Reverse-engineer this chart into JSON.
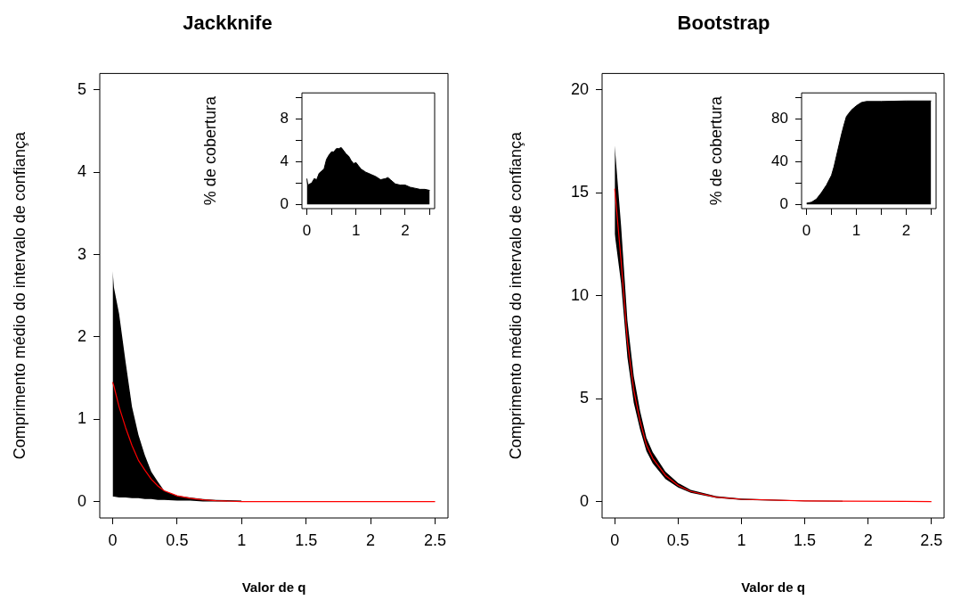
{
  "chart_data": [
    {
      "type": "line",
      "title": "Jackknife",
      "xlabel": "Valor de q",
      "ylabel": "Comprimento médio do intervalo de confiança",
      "xlim": [
        -0.1,
        2.6
      ],
      "ylim": [
        -0.2,
        5.2
      ],
      "xticks": [
        0,
        0.5,
        1,
        1.5,
        2,
        2.5
      ],
      "yticks": [
        0,
        1,
        2,
        3,
        4,
        5
      ],
      "series": [
        {
          "color": "#ff0000",
          "x": [
            0,
            0.01,
            0.05,
            0.1,
            0.15,
            0.2,
            0.25,
            0.3,
            0.35,
            0.4,
            0.5,
            0.6,
            0.7,
            0.8,
            1.0,
            2.5
          ],
          "values": [
            1.45,
            1.4,
            1.15,
            0.9,
            0.68,
            0.5,
            0.38,
            0.27,
            0.19,
            0.13,
            0.07,
            0.04,
            0.02,
            0.01,
            0,
            0
          ],
          "lower": [
            0.06,
            0.06,
            0.05,
            0.05,
            0.04,
            0.04,
            0.03,
            0.03,
            0.02,
            0.02,
            0.01,
            0.01,
            0,
            0,
            0,
            null
          ],
          "upper": [
            2.8,
            2.6,
            2.28,
            1.7,
            1.15,
            0.81,
            0.56,
            0.36,
            0.24,
            0.13,
            0.07,
            0.05,
            0.03,
            0.02,
            0.01,
            null
          ]
        }
      ]
    },
    {
      "type": "area",
      "ylabel": "% de cobertura",
      "xlim": [
        -0.1,
        2.6
      ],
      "ylim": [
        -0.4,
        10.4
      ],
      "xticks": [
        0,
        {
          "value": 0.5,
          "label": null
        },
        1,
        {
          "value": 1.5,
          "label": null
        },
        2,
        {
          "value": 2.5,
          "label": null
        }
      ],
      "yticks": [
        0,
        {
          "value": 2,
          "label": null
        },
        4,
        {
          "value": 6,
          "label": null
        },
        8,
        {
          "value": 10,
          "label": null
        }
      ],
      "series": [
        {
          "color": "#000000",
          "x": [
            0,
            0.02,
            0.1,
            0.15,
            0.2,
            0.25,
            0.3,
            0.35,
            0.4,
            0.45,
            0.5,
            0.55,
            0.6,
            0.65,
            0.7,
            0.75,
            0.8,
            0.85,
            0.9,
            0.95,
            1.0,
            1.05,
            1.1,
            1.2,
            1.3,
            1.4,
            1.5,
            1.6,
            1.65,
            1.7,
            1.8,
            1.9,
            2.0,
            2.1,
            2.2,
            2.3,
            2.4,
            2.5
          ],
          "values": [
            2.4,
            1.8,
            2.0,
            2.4,
            2.3,
            2.9,
            3.1,
            3.3,
            4.2,
            4.6,
            4.9,
            4.9,
            5.2,
            5.2,
            5.3,
            5.0,
            4.7,
            4.5,
            4.1,
            3.8,
            3.9,
            3.6,
            3.3,
            3.0,
            2.8,
            2.6,
            2.3,
            2.4,
            2.5,
            2.3,
            1.9,
            1.8,
            1.8,
            1.6,
            1.5,
            1.4,
            1.4,
            1.3
          ]
        }
      ]
    },
    {
      "type": "line",
      "title": "Bootstrap",
      "xlabel": "Valor de q",
      "ylabel": "Comprimento médio do intervalo de confiança",
      "xlim": [
        -0.1,
        2.6
      ],
      "ylim": [
        -0.8,
        20.8
      ],
      "xticks": [
        0,
        0.5,
        1,
        1.5,
        2,
        2.5
      ],
      "yticks": [
        0,
        5,
        10,
        15,
        20
      ],
      "series": [
        {
          "color": "#ff0000",
          "x": [
            0,
            0.05,
            0.1,
            0.15,
            0.2,
            0.25,
            0.3,
            0.4,
            0.5,
            0.6,
            0.8,
            1.0,
            1.5,
            1.8,
            2.5
          ],
          "values": [
            15.2,
            11.7,
            7.8,
            5.4,
            3.9,
            2.75,
            2.1,
            1.27,
            0.78,
            0.49,
            0.21,
            0.11,
            0.03,
            0.02,
            0
          ],
          "lower": [
            13.0,
            10.6,
            7.0,
            4.8,
            3.5,
            2.45,
            1.85,
            1.1,
            0.68,
            0.42,
            0.17,
            0.08,
            0.01,
            0,
            null
          ],
          "upper": [
            17.3,
            13.4,
            8.8,
            6.1,
            4.4,
            3.1,
            2.4,
            1.45,
            0.9,
            0.57,
            0.26,
            0.14,
            0.05,
            0.03,
            null
          ]
        }
      ]
    },
    {
      "type": "area",
      "ylabel": "% de cobertura",
      "xlim": [
        -0.1,
        2.6
      ],
      "ylim": [
        -4,
        104
      ],
      "xticks": [
        0,
        {
          "value": 0.5,
          "label": null
        },
        1,
        {
          "value": 1.5,
          "label": null
        },
        2,
        {
          "value": 2.5,
          "label": null
        }
      ],
      "yticks": [
        0,
        {
          "value": 20,
          "label": null
        },
        40,
        {
          "value": 60,
          "label": null
        },
        80,
        {
          "value": 100,
          "label": null
        }
      ],
      "series": [
        {
          "color": "#000000",
          "x": [
            0,
            0.1,
            0.2,
            0.3,
            0.4,
            0.5,
            0.55,
            0.6,
            0.65,
            0.7,
            0.75,
            0.8,
            0.9,
            1.0,
            1.1,
            1.2,
            1.5,
            2.0,
            2.5
          ],
          "values": [
            1,
            2,
            5,
            11,
            18,
            27,
            35,
            45,
            55,
            65,
            74,
            82,
            88,
            92,
            95,
            96,
            96,
            96.5,
            96.5
          ]
        }
      ]
    }
  ]
}
